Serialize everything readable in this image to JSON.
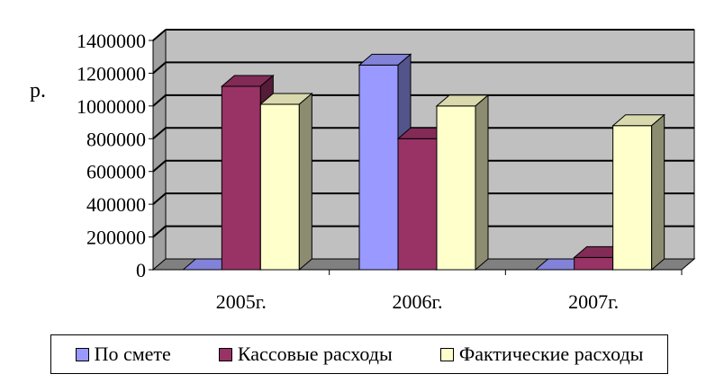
{
  "chart_data": {
    "type": "bar",
    "title": "",
    "ylabel": "р.",
    "xlabel": "",
    "categories": [
      "2005г.",
      "2006г.",
      "2007г."
    ],
    "ylim": [
      0,
      1400000
    ],
    "yticks": [
      0,
      200000,
      400000,
      600000,
      800000,
      1000000,
      1200000,
      1400000
    ],
    "grid": true,
    "legend_position": "bottom",
    "series": [
      {
        "name": "По смете",
        "color": "#9999ff",
        "values": [
          0,
          1250000,
          0
        ]
      },
      {
        "name": "Кассовые расходы",
        "color": "#993366",
        "values": [
          1120000,
          800000,
          75000
        ]
      },
      {
        "name": "Фактические расходы",
        "color": "#ffffcc",
        "values": [
          1010000,
          1000000,
          880000
        ]
      }
    ]
  },
  "colors": {
    "wall": "#c0c0c0",
    "floor": "#808080",
    "gridline": "#000000"
  }
}
